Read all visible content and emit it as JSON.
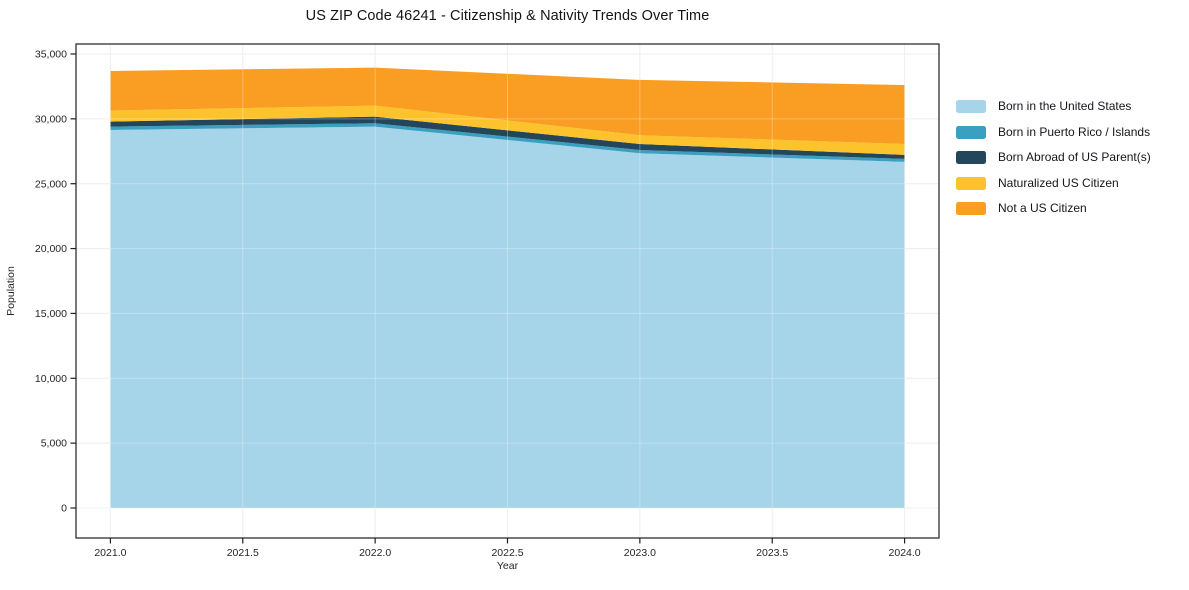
{
  "chart_data": {
    "type": "area",
    "stacked": true,
    "title": "US ZIP Code 46241 - Citizenship & Nativity Trends Over Time",
    "xlabel": "Year",
    "ylabel": "Population",
    "x": [
      2021,
      2022,
      2023,
      2024
    ],
    "series": [
      {
        "name": "Born in the United States",
        "color": "#a6d4e8",
        "values": [
          29140,
          29400,
          27350,
          26680
        ]
      },
      {
        "name": "Born in Puerto Rico / Islands",
        "color": "#3a9fc1",
        "values": [
          260,
          260,
          250,
          230
        ]
      },
      {
        "name": "Born Abroad of US Parent(s)",
        "color": "#24465a",
        "values": [
          390,
          510,
          460,
          310
        ]
      },
      {
        "name": "Naturalized US Citizen",
        "color": "#fcc32d",
        "values": [
          850,
          850,
          680,
          840
        ]
      },
      {
        "name": "Not a US Citizen",
        "color": "#f99d23",
        "values": [
          3050,
          2930,
          4260,
          4550
        ]
      }
    ],
    "totals": [
      33690,
      33950,
      33000,
      32610
    ],
    "xticks": [
      2021.0,
      2021.5,
      2022.0,
      2022.5,
      2023.0,
      2023.5,
      2024.0
    ],
    "xtick_labels": [
      "2021.0",
      "2021.5",
      "2022.0",
      "2022.5",
      "2023.0",
      "2023.5",
      "2024.0"
    ],
    "yticks": [
      0,
      5000,
      10000,
      15000,
      20000,
      25000,
      30000,
      35000
    ],
    "ytick_labels": [
      "0",
      "5,000",
      "10,000",
      "15,000",
      "20,000",
      "25,000",
      "30,000",
      "35,000"
    ],
    "xlim": [
      2020.87,
      2024.13
    ],
    "ylim": [
      -2313,
      35770
    ],
    "grid": true,
    "legend_position": "right",
    "colors": {
      "grid": "#e9e9ec",
      "grid_over_area": "rgba(255,255,255,0.30)",
      "spine": "#1f1f1f",
      "tick_text": "#262626",
      "background": "#ffffff"
    }
  }
}
